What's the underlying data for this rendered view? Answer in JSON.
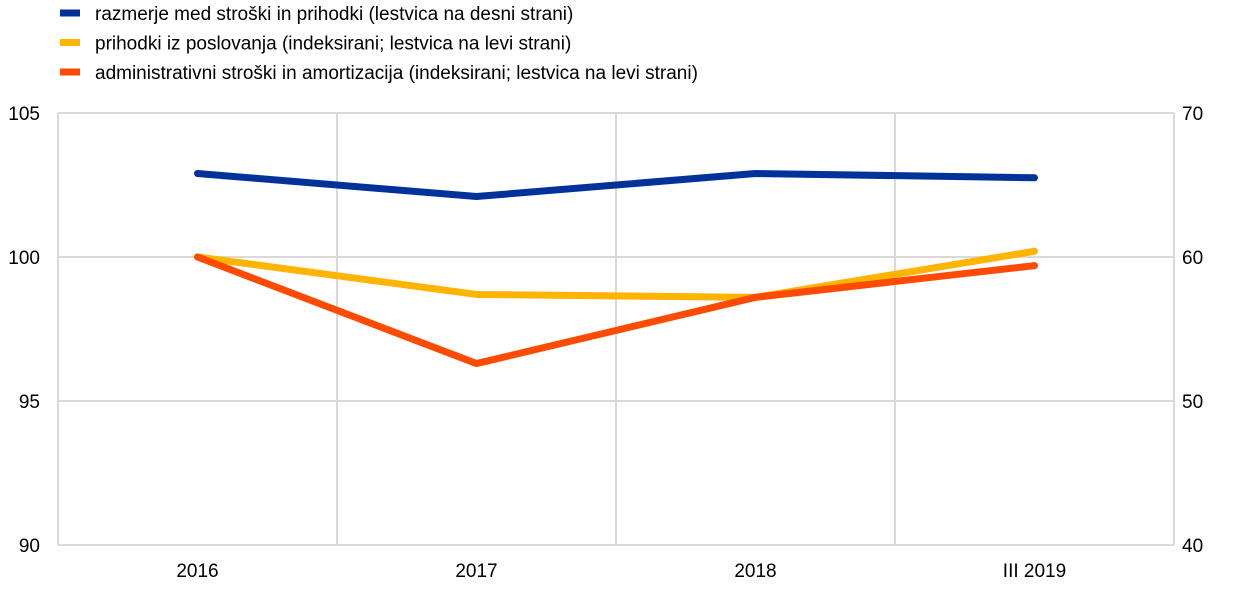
{
  "chart_data": {
    "type": "line",
    "categories": [
      "2016",
      "2017",
      "2018",
      "III 2019"
    ],
    "series": [
      {
        "name": "razmerje med stroški in prihodki (lestvica na desni strani)",
        "axis": "right",
        "color": "#003299",
        "values": [
          65.8,
          64.2,
          65.8,
          65.5
        ]
      },
      {
        "name": "prihodki iz poslovanja (indeksirani; lestvica na levi strani)",
        "axis": "left",
        "color": "#FFB400",
        "values": [
          100,
          98.7,
          98.6,
          100.2
        ]
      },
      {
        "name": "administrativni stroški in amortizacija (indeksirani; lestvica na levi strani)",
        "axis": "left",
        "color": "#FF4B00",
        "values": [
          100,
          96.3,
          98.6,
          99.7
        ]
      }
    ],
    "left_axis": {
      "ylim": [
        90,
        105
      ],
      "ticks": [
        "90",
        "95",
        "100",
        "105"
      ]
    },
    "right_axis": {
      "ylim": [
        40,
        70
      ],
      "ticks": [
        "40",
        "50",
        "60",
        "70"
      ]
    },
    "legend_position": "top-left",
    "grid": true
  }
}
